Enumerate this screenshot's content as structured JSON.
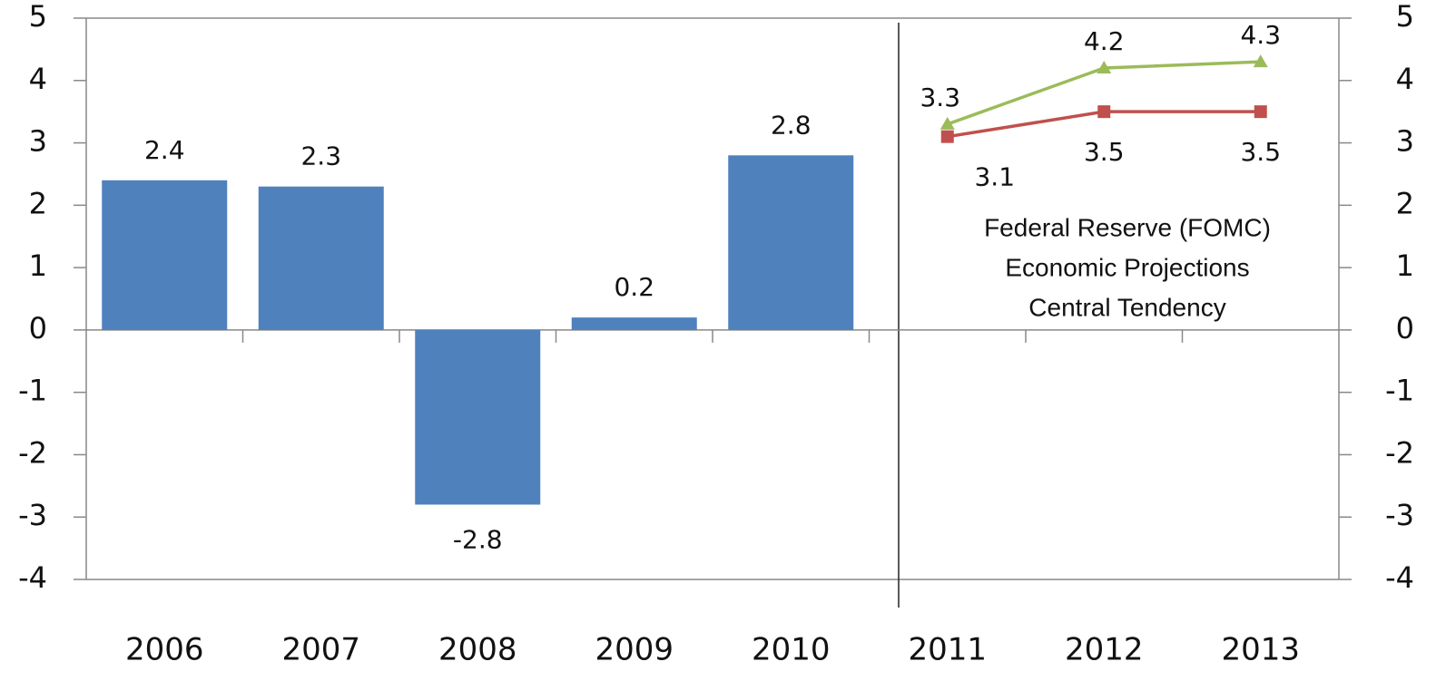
{
  "chart_data": {
    "type": "bar",
    "categories": [
      "2006",
      "2007",
      "2008",
      "2009",
      "2010",
      "2011",
      "2012",
      "2013"
    ],
    "series": [
      {
        "type": "bar",
        "color": "#4f81bd",
        "values": [
          2.4,
          2.3,
          -2.8,
          0.2,
          2.8,
          null,
          null,
          null
        ]
      },
      {
        "type": "line",
        "axis": "y2",
        "color": "#9bbb59",
        "marker": "triangle",
        "label_position": "above",
        "values": [
          null,
          null,
          null,
          null,
          null,
          3.3,
          4.2,
          4.3
        ]
      },
      {
        "type": "line",
        "axis": "y2",
        "color": "#c0504d",
        "marker": "square",
        "label_position": "below",
        "values": [
          null,
          null,
          null,
          null,
          null,
          3.1,
          3.5,
          3.5
        ]
      }
    ],
    "ylim": [
      -4,
      5
    ],
    "yticks": [
      -4,
      -3,
      -2,
      -1,
      0,
      1,
      2,
      3,
      4,
      5
    ],
    "y2lim": [
      -4,
      5
    ],
    "y2ticks": [
      -4,
      -3,
      -2,
      -1,
      0,
      1,
      2,
      3,
      4,
      5
    ],
    "annotation": [
      "Federal Reserve (FOMC)",
      "Economic Projections",
      "Central Tendency"
    ]
  }
}
